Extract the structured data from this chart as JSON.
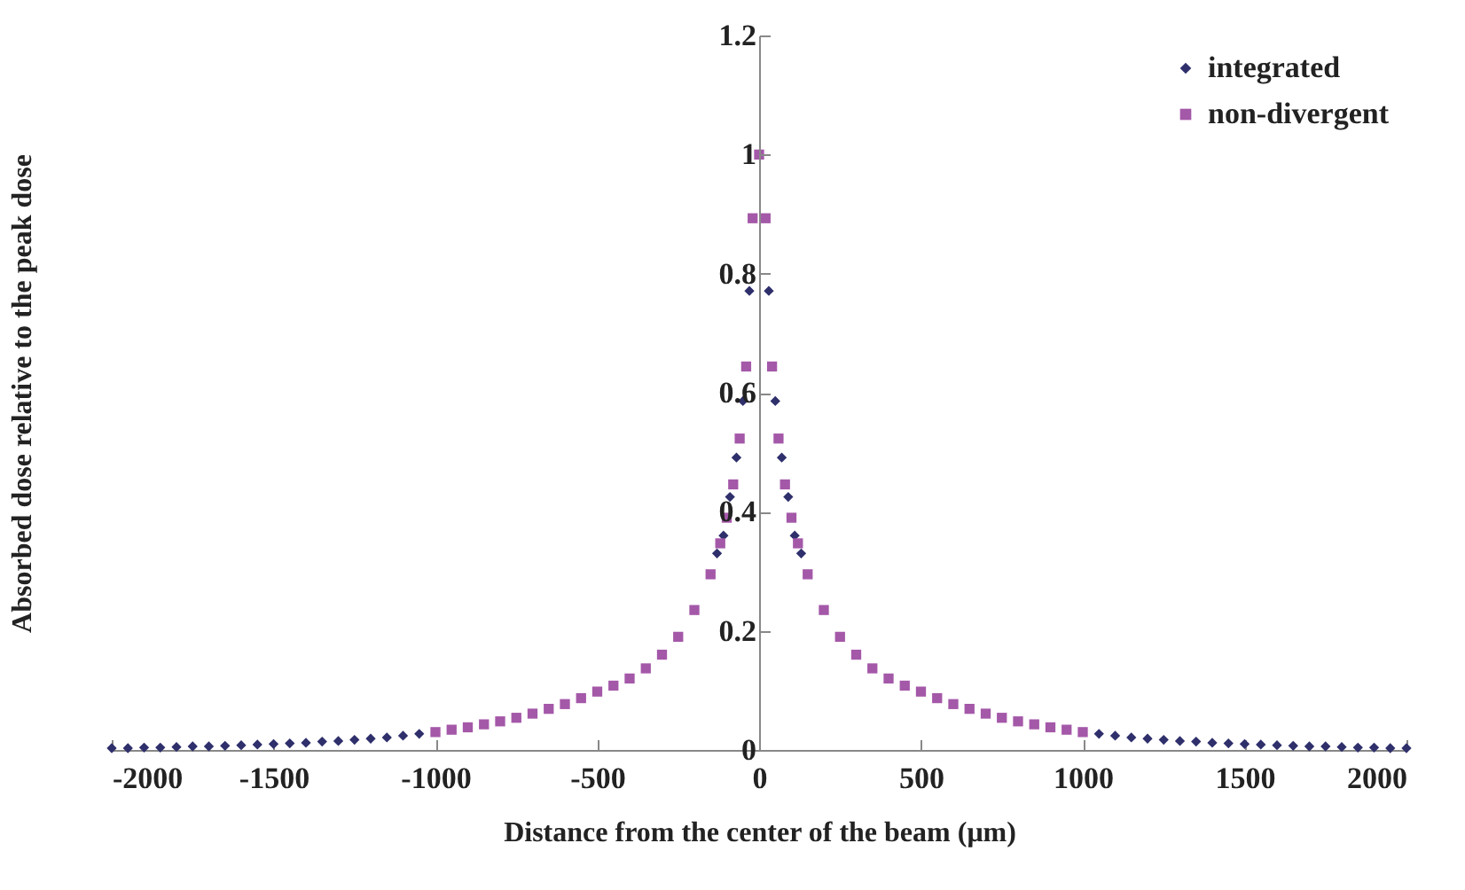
{
  "chart_data": {
    "type": "scatter",
    "xlabel": "Distance from the center of the beam (μm)",
    "ylabel": "Absorbed dose relative to the peak dose",
    "xlim": [
      -2000,
      2000
    ],
    "xticks": [
      -2000,
      -1500,
      -1000,
      -500,
      0,
      500,
      1000,
      1500,
      2000
    ],
    "ylim": [
      0,
      1.2
    ],
    "yticks": [
      0,
      0.2,
      0.4,
      0.6,
      0.8,
      1,
      1.2
    ],
    "grid": false,
    "legend": "top right",
    "series": [
      {
        "name": "integrated",
        "color": "#2e2f6b",
        "marker": "diamond",
        "x": [
          -2000,
          -1950,
          -1900,
          -1850,
          -1800,
          -1750,
          -1700,
          -1650,
          -1600,
          -1550,
          -1500,
          -1450,
          -1400,
          -1350,
          -1300,
          -1250,
          -1200,
          -1150,
          -1100,
          -1050,
          -130,
          -110,
          -90,
          -70,
          -50,
          -30,
          30,
          50,
          70,
          90,
          110,
          130,
          1050,
          1100,
          1150,
          1200,
          1250,
          1300,
          1350,
          1400,
          1450,
          1500,
          1550,
          1600,
          1650,
          1700,
          1750,
          1800,
          1850,
          1900,
          1950,
          2000
        ],
        "values": [
          0.003,
          0.003,
          0.004,
          0.004,
          0.005,
          0.006,
          0.006,
          0.007,
          0.008,
          0.009,
          0.01,
          0.011,
          0.012,
          0.014,
          0.015,
          0.017,
          0.019,
          0.021,
          0.024,
          0.027,
          0.33,
          0.36,
          0.425,
          0.491,
          0.586,
          0.771,
          0.771,
          0.586,
          0.491,
          0.425,
          0.36,
          0.33,
          0.027,
          0.024,
          0.021,
          0.019,
          0.017,
          0.015,
          0.014,
          0.012,
          0.011,
          0.01,
          0.009,
          0.008,
          0.007,
          0.006,
          0.006,
          0.005,
          0.004,
          0.004,
          0.003,
          0.003
        ]
      },
      {
        "name": "non-divergent",
        "color": "#a458a8",
        "marker": "square",
        "x": [
          -1000,
          -950,
          -900,
          -850,
          -800,
          -750,
          -700,
          -650,
          -600,
          -550,
          -500,
          -450,
          -400,
          -350,
          -300,
          -250,
          -200,
          -150,
          -120,
          -100,
          -80,
          -60,
          -40,
          -20,
          0,
          20,
          40,
          60,
          80,
          100,
          120,
          150,
          200,
          250,
          300,
          350,
          400,
          450,
          500,
          550,
          600,
          650,
          700,
          750,
          800,
          850,
          900,
          950,
          1000
        ],
        "values": [
          0.03,
          0.034,
          0.038,
          0.043,
          0.048,
          0.054,
          0.061,
          0.069,
          0.077,
          0.087,
          0.098,
          0.108,
          0.12,
          0.137,
          0.16,
          0.19,
          0.235,
          0.295,
          0.347,
          0.39,
          0.446,
          0.523,
          0.644,
          0.893,
          1.0,
          0.893,
          0.644,
          0.523,
          0.446,
          0.39,
          0.347,
          0.295,
          0.235,
          0.19,
          0.16,
          0.137,
          0.12,
          0.108,
          0.098,
          0.087,
          0.077,
          0.069,
          0.061,
          0.054,
          0.048,
          0.043,
          0.038,
          0.034,
          0.03
        ]
      }
    ]
  }
}
